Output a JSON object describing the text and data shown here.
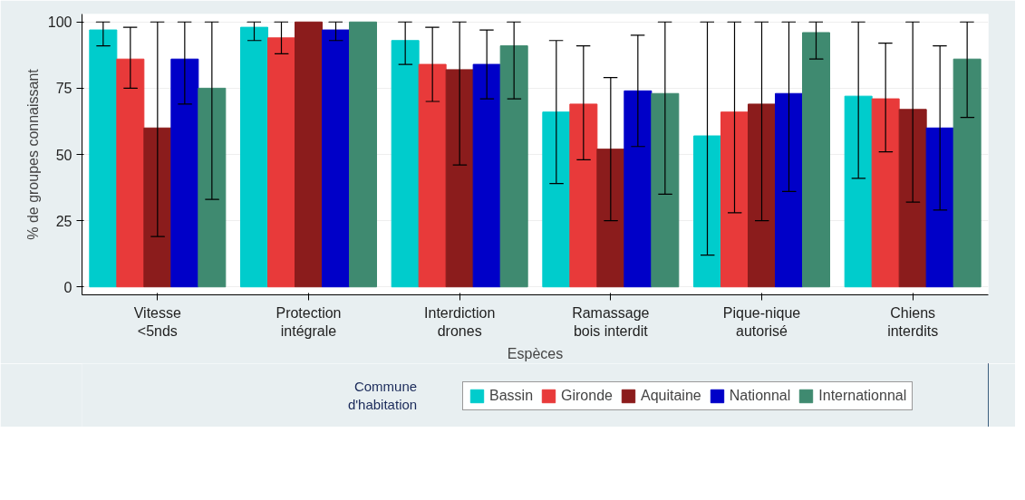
{
  "chart_data": {
    "type": "bar",
    "xlabel": "Espèces",
    "ylabel": "% de groupes connaissant",
    "legend_title": "Commune\nd'habitation",
    "legend": "bottom",
    "grid": "y",
    "categories": [
      "Vitesse\n<5nds",
      "Protection\nintégrale",
      "Interdiction\ndrones",
      "Ramassage\nbois interdit",
      "Pique-nique\nautorisé",
      "Chiens\ninterdits"
    ],
    "ylim": [
      -3,
      103
    ],
    "yticks": [
      0,
      25,
      50,
      75,
      100
    ],
    "series": [
      {
        "name": "Bassin",
        "color": "#00cccc",
        "values": [
          97,
          98,
          93,
          66,
          57,
          72
        ],
        "errors": [
          [
            91,
            100
          ],
          [
            93,
            100
          ],
          [
            84,
            100
          ],
          [
            39,
            93
          ],
          [
            12,
            100
          ],
          [
            41,
            100
          ]
        ]
      },
      {
        "name": "Gironde",
        "color": "#e83a3a",
        "values": [
          86,
          94,
          84,
          69,
          66,
          71
        ],
        "errors": [
          [
            75,
            98
          ],
          [
            88,
            100
          ],
          [
            70,
            98
          ],
          [
            48,
            91
          ],
          [
            28,
            100
          ],
          [
            51,
            92
          ]
        ]
      },
      {
        "name": "Aquitaine",
        "color": "#8b1c1c",
        "values": [
          60,
          100,
          82,
          52,
          69,
          67
        ],
        "errors": [
          [
            19,
            100
          ],
          null,
          [
            46,
            100
          ],
          [
            25,
            79
          ],
          [
            25,
            100
          ],
          [
            32,
            100
          ]
        ]
      },
      {
        "name": "Nationnal",
        "color": "#0000c8",
        "values": [
          86,
          97,
          84,
          74,
          73,
          60
        ],
        "errors": [
          [
            69,
            100
          ],
          [
            93,
            100
          ],
          [
            71,
            97
          ],
          [
            53,
            95
          ],
          [
            36,
            100
          ],
          [
            29,
            91
          ]
        ]
      },
      {
        "name": "Internationnal",
        "color": "#3f8a70",
        "values": [
          75,
          100,
          91,
          73,
          96,
          86
        ],
        "errors": [
          [
            33,
            100
          ],
          null,
          [
            71,
            100
          ],
          [
            35,
            100
          ],
          [
            86,
            100
          ],
          [
            64,
            100
          ]
        ]
      }
    ]
  }
}
